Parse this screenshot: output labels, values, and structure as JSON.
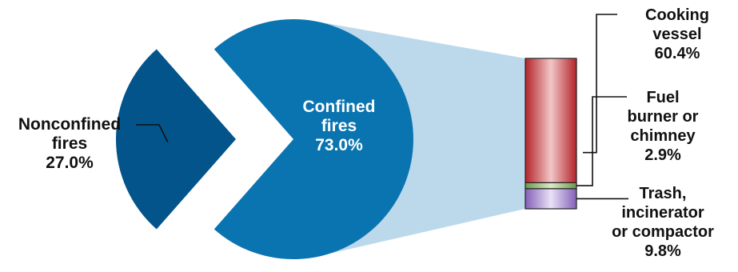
{
  "chart_data": {
    "type": "pie",
    "slices": [
      {
        "lines": [
          "Confined",
          "fires"
        ],
        "value": 73.0,
        "value_text": "73.0%",
        "color": "#0a74b0"
      },
      {
        "lines": [
          "Nonconfined",
          "fires"
        ],
        "value": 27.0,
        "value_text": "27.0%",
        "color": "#04548c"
      }
    ],
    "breakdown": {
      "of_slice": "Confined fires",
      "segments": [
        {
          "lines": [
            "Trash,",
            "incinerator",
            "or compactor"
          ],
          "value": 9.8,
          "value_text": "9.8%",
          "color": "#9b79c8"
        },
        {
          "lines": [
            "Fuel",
            "burner or",
            "chimney"
          ],
          "value": 2.9,
          "value_text": "2.9%",
          "color": "#7fae5a"
        },
        {
          "lines": [
            "Cooking",
            "vessel"
          ],
          "value": 60.4,
          "value_text": "60.4%",
          "color": "#c22d2d"
        }
      ]
    },
    "connector_color": "#bcd9ec",
    "inner_label_color": "#ffffff",
    "outer_label_color": "#111111"
  }
}
